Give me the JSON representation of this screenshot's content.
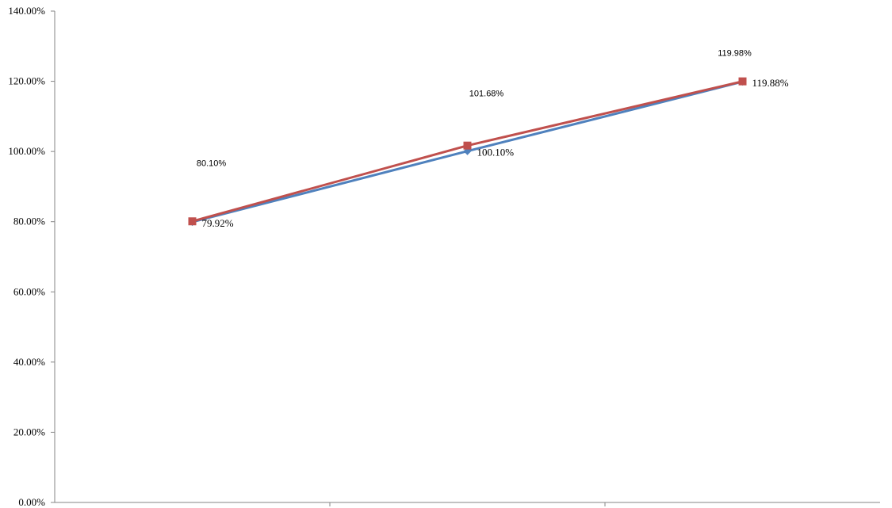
{
  "chart_data": {
    "type": "line",
    "categories": [
      "",
      "",
      ""
    ],
    "title": "",
    "xlabel": "",
    "ylabel": "",
    "ylim": [
      0,
      140
    ],
    "yticks": [
      "0.00%",
      "20.00%",
      "40.00%",
      "60.00%",
      "80.00%",
      "100.00%",
      "120.00%",
      "140.00%"
    ],
    "grid": false,
    "legend": "none",
    "series": [
      {
        "values": [
          79.92,
          100.1,
          119.88
        ],
        "labels": [
          "79.92%",
          "100.10%",
          "119.88%"
        ],
        "color": "#4F81BD",
        "marker": "diamond"
      },
      {
        "values": [
          80.1,
          101.68,
          119.98
        ],
        "labels": [
          "80.10%",
          "101.68%",
          "119.98%"
        ],
        "color": "#C0504D",
        "marker": "square"
      }
    ]
  }
}
